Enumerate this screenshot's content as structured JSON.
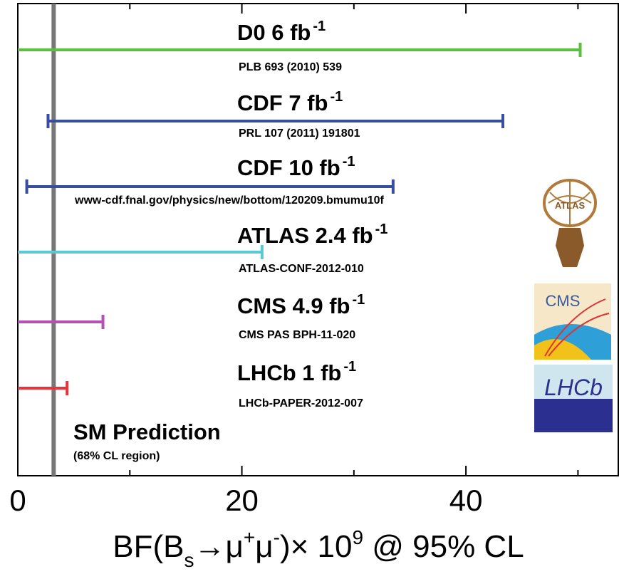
{
  "chart_data": {
    "type": "limit_bar",
    "x_label": [
      {
        "text": "BF(B",
        "style": "normal"
      },
      {
        "text": "s",
        "style": "sub"
      },
      {
        "text": "→μ",
        "style": "normal"
      },
      {
        "text": "+",
        "style": "sup"
      },
      {
        "text": "μ",
        "style": "normal"
      },
      {
        "text": "-",
        "style": "sup"
      },
      {
        "text": ")× 10",
        "style": "normal"
      },
      {
        "text": "9",
        "style": "sup"
      },
      {
        "text": " @ 95% CL",
        "style": "normal"
      }
    ],
    "xlim": [
      0,
      53.6
    ],
    "xticks": [
      0,
      20,
      40
    ],
    "minor_xticks": [
      10,
      30,
      50
    ],
    "series": [
      {
        "name": "D0 6 fb",
        "exponent": "-1",
        "reference": "PLB 693 (2010) 539",
        "color": "#5bbf3f",
        "low": null,
        "value": 50.2
      },
      {
        "name": "CDF 7 fb",
        "exponent": "-1",
        "reference": "PRL 107 (2011) 191801",
        "color": "#3a4ea0",
        "low": 2.7,
        "value": 43.3
      },
      {
        "name": "CDF 10 fb",
        "exponent": "-1",
        "reference": "www-cdf.fnal.gov/physics/new/bottom/120209.bmumu10f",
        "color": "#3a4ea0",
        "low": 0.8,
        "value": 33.5
      },
      {
        "name": "ATLAS 2.4 fb",
        "exponent": "-1",
        "reference": "ATLAS-CONF-2012-010",
        "color": "#5bc8d8",
        "low": null,
        "value": 21.8
      },
      {
        "name": "CMS 4.9 fb",
        "exponent": "-1",
        "reference": "CMS PAS BPH-11-020",
        "color": "#b550b5",
        "low": null,
        "value": 7.6
      },
      {
        "name": "LHCb 1 fb",
        "exponent": "-1",
        "reference": "LHCb-PAPER-2012-007",
        "color": "#e8333a",
        "low": null,
        "value": 4.4
      }
    ],
    "reference_line": {
      "name": "SM Prediction",
      "note": "(68% CL region)",
      "value": 3.2,
      "color": "#777777"
    },
    "logos": [
      "ATLAS",
      "CMS",
      "LHCb"
    ]
  }
}
